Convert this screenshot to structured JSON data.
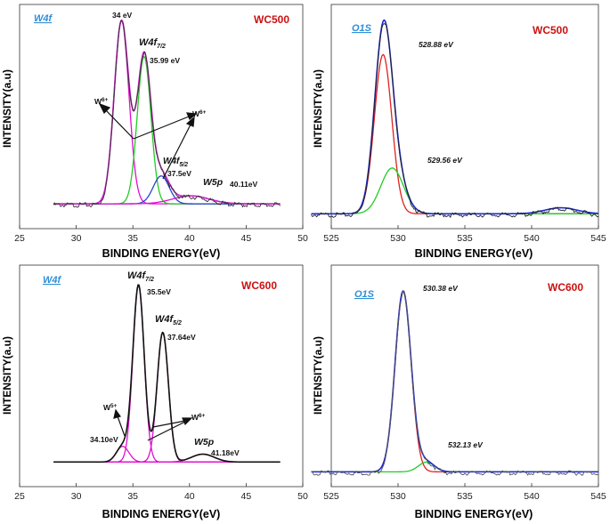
{
  "chart_data": [
    {
      "type": "line",
      "panel": "top-left",
      "tag": "W4f",
      "sample": "WC500",
      "xlabel": "BINDING ENERGY(eV)",
      "ylabel": "INTENSITY(a.u)",
      "xlim": [
        25,
        50
      ],
      "xticks": [
        25,
        30,
        35,
        40,
        45,
        50
      ],
      "ylim": [
        0,
        1.05
      ],
      "baseline": 0.08,
      "x_range": [
        28,
        48
      ],
      "series": [
        {
          "name": "peak-34",
          "color": "#e010d0",
          "peaks": [
            {
              "center": 34.0,
              "height": 0.92,
              "width": 0.65
            }
          ]
        },
        {
          "name": "peak-35.99",
          "color": "#22cc22",
          "peaks": [
            {
              "center": 35.99,
              "height": 0.74,
              "width": 0.6
            }
          ]
        },
        {
          "name": "peak-37.5",
          "color": "#2244cc",
          "peaks": [
            {
              "center": 37.5,
              "height": 0.14,
              "width": 0.7
            }
          ]
        },
        {
          "name": "peak-40.11",
          "color": "#e010d0",
          "peaks": [
            {
              "center": 40.11,
              "height": 0.04,
              "width": 1.6
            }
          ]
        },
        {
          "name": "envelope",
          "color": "#d020cc",
          "envelope": true
        },
        {
          "name": "raw",
          "color": "#333333",
          "raw": true
        }
      ],
      "labels": {
        "p1": "34 eV",
        "p2_main": "W4f",
        "p2_sub": "7/2",
        "p2_val": "35.99 eV",
        "w_left": "W",
        "w_left_sup": "6+",
        "w_right": "W",
        "w_right_sup": "6+",
        "p3_main": "W4f",
        "p3_sub": "5/2",
        "p3_val": "37.5eV",
        "p4_main": "W5p",
        "p4_val": "40.11eV"
      }
    },
    {
      "type": "line",
      "panel": "top-right",
      "tag": "O1S",
      "sample": "WC500",
      "xlabel": "BINDING ENERGY(eV)",
      "ylabel": "INTENSITY(a.u)",
      "xlim": [
        525,
        545
      ],
      "xticks": [
        525,
        530,
        535,
        540,
        545
      ],
      "ylim": [
        0,
        1.05
      ],
      "baseline": 0.03,
      "x_range": [
        523.5,
        545
      ],
      "series": [
        {
          "name": "peak-528.88",
          "color": "#e02020",
          "peaks": [
            {
              "center": 528.88,
              "height": 0.8,
              "width": 0.65
            }
          ]
        },
        {
          "name": "peak-529.56",
          "color": "#22cc22",
          "peaks": [
            {
              "center": 529.56,
              "height": 0.23,
              "width": 0.85
            }
          ]
        },
        {
          "name": "bump",
          "color": "#2233cc",
          "peaks": [
            {
              "center": 542.2,
              "height": 0.03,
              "width": 1.2
            }
          ],
          "hidden": true
        },
        {
          "name": "envelope",
          "color": "#1a2bd0",
          "envelope": true
        },
        {
          "name": "raw",
          "color": "#222222",
          "raw": true
        }
      ],
      "labels": {
        "p1": "528.88 eV",
        "p2": "529.56 eV"
      }
    },
    {
      "type": "line",
      "panel": "bottom-left",
      "tag": "W4f",
      "sample": "WC600",
      "xlabel": "BINDING ENERGY(eV)",
      "ylabel": "INTENSITY(a.u)",
      "xlim": [
        25,
        50
      ],
      "xticks": [
        25,
        30,
        35,
        40,
        45,
        50
      ],
      "ylim": [
        0,
        1.05
      ],
      "baseline": 0.08,
      "x_range": [
        28,
        48
      ],
      "series": [
        {
          "name": "peak-34.10",
          "color": "#e010d0",
          "peaks": [
            {
              "center": 34.1,
              "height": 0.08,
              "width": 0.55
            }
          ]
        },
        {
          "name": "peak-35.5",
          "color": "#e010d0",
          "peaks": [
            {
              "center": 35.5,
              "height": 0.9,
              "width": 0.5
            }
          ]
        },
        {
          "name": "peak-37.64",
          "color": "#e010d0",
          "peaks": [
            {
              "center": 37.64,
              "height": 0.66,
              "width": 0.5
            }
          ]
        },
        {
          "name": "peak-41.18",
          "color": "#e010d0",
          "peaks": [
            {
              "center": 41.18,
              "height": 0.04,
              "width": 1.0
            }
          ]
        },
        {
          "name": "cyan-baseline",
          "color": "#22cccc",
          "flat": true
        },
        {
          "name": "envelope",
          "color": "#111111",
          "envelope": true
        }
      ],
      "labels": {
        "p1_main": "W4f",
        "p1_sub": "7/2",
        "p1_val": "35.5eV",
        "p2_main": "W4f",
        "p2_sub": "5/2",
        "p2_val": "37.64eV",
        "w_left": "W",
        "w_left_sup": "5+",
        "w_right": "W",
        "w_right_sup": "6+",
        "p3_val": "34.10eV",
        "p4_main": "W5p",
        "p4_val": "41.18eV"
      }
    },
    {
      "type": "line",
      "panel": "bottom-right",
      "tag": "O1S",
      "sample": "WC600",
      "xlabel": "BINDING ENERGY(eV)",
      "ylabel": "INTENSITY(a.u)",
      "xlim": [
        525,
        545
      ],
      "xticks": [
        525,
        530,
        535,
        540,
        545
      ],
      "ylim": [
        0,
        1.05
      ],
      "baseline": 0.03,
      "x_range": [
        523.5,
        545
      ],
      "series": [
        {
          "name": "peak-530.38",
          "color": "#e02020",
          "peaks": [
            {
              "center": 530.38,
              "height": 0.92,
              "width": 0.6
            }
          ]
        },
        {
          "name": "peak-532.13",
          "color": "#22cc22",
          "peaks": [
            {
              "center": 532.13,
              "height": 0.05,
              "width": 0.6
            }
          ]
        },
        {
          "name": "envelope",
          "color": "#1a2bd0",
          "envelope": true
        },
        {
          "name": "raw",
          "color": "#555555",
          "raw": true
        }
      ],
      "labels": {
        "p1": "530.38 eV",
        "p2": "532.13 eV"
      }
    }
  ]
}
